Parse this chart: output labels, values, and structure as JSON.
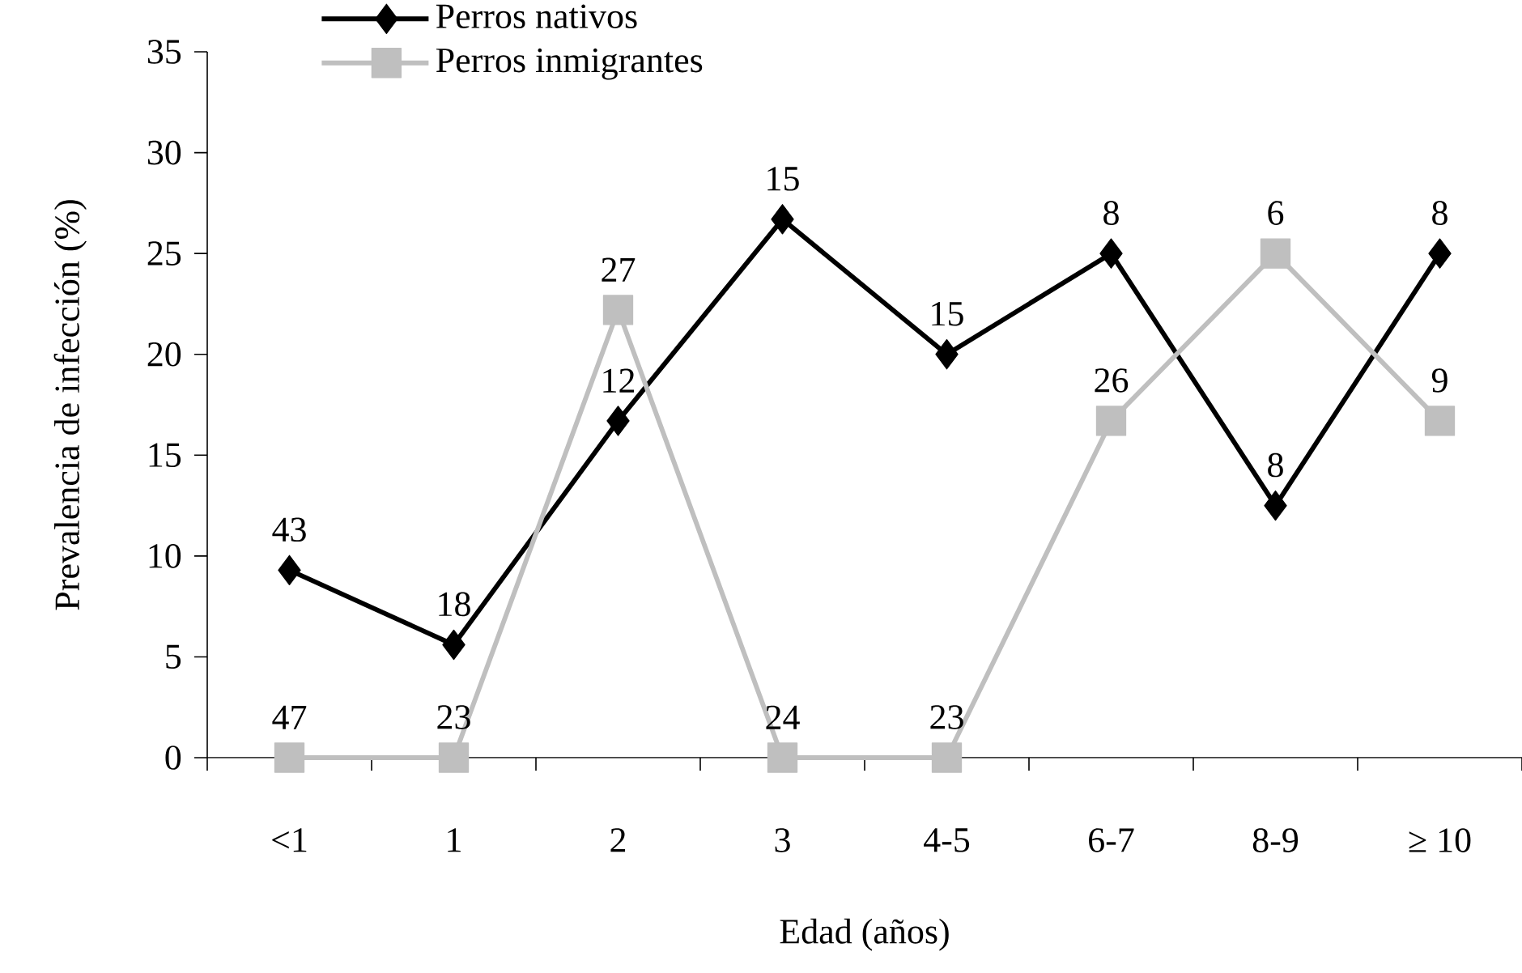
{
  "chart_data": {
    "type": "line",
    "xlabel": "Edad (años)",
    "ylabel": "Prevalencia de infección (%)",
    "categories": [
      "<1",
      "1",
      "2",
      "3",
      "4-5",
      "6-7",
      "8-9",
      "≥ 10"
    ],
    "ylim": [
      0,
      35
    ],
    "yticks": [
      0,
      5,
      10,
      15,
      20,
      25,
      30,
      35
    ],
    "legend": "top left",
    "series": [
      {
        "name": "Perros nativos",
        "color": "#000000",
        "marker": "diamond",
        "values": [
          9.3,
          5.6,
          16.7,
          26.7,
          20,
          25,
          12.5,
          25
        ]
      },
      {
        "name": "Perros inmigrantes",
        "color": "#bfbfbf",
        "marker": "square",
        "values": [
          0,
          0,
          22.2,
          0,
          0,
          16.7,
          25,
          16.7
        ]
      }
    ],
    "annotations": [
      {
        "text": "43",
        "x": "<1",
        "y": 9.3
      },
      {
        "text": "18",
        "x": "1",
        "y": 5.6
      },
      {
        "text": "12",
        "x": "2",
        "y": 16.7
      },
      {
        "text": "15",
        "x": "3",
        "y": 26.7
      },
      {
        "text": "15",
        "x": "4-5",
        "y": 20
      },
      {
        "text": "8",
        "x": "6-7",
        "y": 25
      },
      {
        "text": "8",
        "x": "8-9",
        "y": 12.5
      },
      {
        "text": "8",
        "x": "≥ 10",
        "y": 25
      },
      {
        "text": "47",
        "x": "<1",
        "y": 0
      },
      {
        "text": "23",
        "x": "1",
        "y": 0
      },
      {
        "text": "27",
        "x": "2",
        "y": 22.2
      },
      {
        "text": "24",
        "x": "3",
        "y": 0
      },
      {
        "text": "23",
        "x": "4-5",
        "y": 0
      },
      {
        "text": "26",
        "x": "6-7",
        "y": 16.7
      },
      {
        "text": "6",
        "x": "8-9",
        "y": 25
      },
      {
        "text": "9",
        "x": "≥ 10",
        "y": 16.7
      }
    ]
  }
}
